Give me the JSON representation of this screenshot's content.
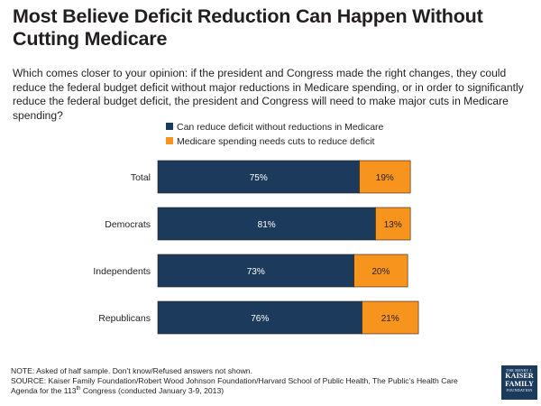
{
  "chart_data": {
    "type": "bar",
    "orientation": "horizontal",
    "stacked": true,
    "title": "Most Believe Deficit Reduction Can Happen Without Cutting Medicare",
    "subtitle": "Which comes closer to your opinion: if the president and Congress made the right changes, they could reduce the federal budget deficit without major reductions in Medicare spending, or in order to significantly reduce the federal budget deficit, the president and Congress will need to make major cuts in Medicare spending?",
    "categories": [
      "Total",
      "Democrats",
      "Independents",
      "Republicans"
    ],
    "series": [
      {
        "name": "Can reduce deficit without reductions in Medicare",
        "values": [
          75,
          81,
          73,
          76
        ],
        "labels": [
          "75%",
          "81%",
          "73%",
          "76%"
        ],
        "color": "#1b3a5c",
        "label_color": "#ffffff"
      },
      {
        "name": "Medicare spending needs cuts to reduce deficit",
        "values": [
          19,
          13,
          20,
          21
        ],
        "labels": [
          "19%",
          "13%",
          "20%",
          "21%"
        ],
        "color": "#f7941d",
        "label_color": "#231f20"
      }
    ],
    "xlim": [
      0,
      100
    ],
    "xlabel": "",
    "ylabel": "",
    "legend": "top-center",
    "grid": false
  },
  "footnote": {
    "line1": "NOTE: Asked of half sample. Don’t know/Refused answers  not shown.",
    "line2": "SOURCE: Kaiser Family Foundation/Robert Wood Johnson Foundation/Harvard School of Public Health, The Public’s Health Care",
    "line3_pre": "Agenda for the 113",
    "line3_sup": "th",
    "line3_post": " Congress (conducted January 3-9, 2013)"
  },
  "logo": {
    "top": "THE HENRY J.",
    "line1": "KAISER",
    "line2": "FAMILY",
    "bottom": "FOUNDATION"
  }
}
